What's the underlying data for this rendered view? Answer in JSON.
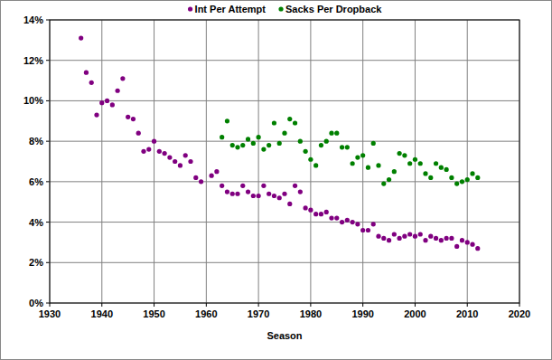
{
  "chart_data": {
    "type": "scatter",
    "x_label": "Season",
    "xlim": [
      1930,
      2020
    ],
    "xticks": [
      1930,
      1940,
      1950,
      1960,
      1970,
      1980,
      1990,
      2000,
      2010,
      2020
    ],
    "ylim": [
      0,
      14
    ],
    "yticks": [
      {
        "value": 0,
        "label": "0%"
      },
      {
        "value": 2,
        "label": "2%"
      },
      {
        "value": 4,
        "label": "4%"
      },
      {
        "value": 6,
        "label": "6%"
      },
      {
        "value": 8,
        "label": "8%"
      },
      {
        "value": 10,
        "label": "10%"
      },
      {
        "value": 12,
        "label": "12%"
      },
      {
        "value": 14,
        "label": "14%"
      }
    ],
    "grid": true,
    "legend": "top",
    "series": [
      {
        "name": "Int Per Attempt",
        "color": "#800080",
        "marker": "circle",
        "x": [
          1936,
          1937,
          1938,
          1939,
          1940,
          1941,
          1942,
          1943,
          1944,
          1945,
          1946,
          1947,
          1948,
          1949,
          1950,
          1951,
          1952,
          1953,
          1954,
          1955,
          1956,
          1957,
          1958,
          1959,
          1961,
          1962,
          1963,
          1964,
          1965,
          1966,
          1967,
          1968,
          1969,
          1970,
          1971,
          1972,
          1973,
          1974,
          1975,
          1976,
          1977,
          1978,
          1979,
          1980,
          1981,
          1982,
          1983,
          1984,
          1985,
          1986,
          1987,
          1988,
          1989,
          1990,
          1991,
          1992,
          1993,
          1994,
          1995,
          1996,
          1997,
          1998,
          1999,
          2000,
          2001,
          2002,
          2003,
          2004,
          2005,
          2006,
          2007,
          2008,
          2009,
          2010,
          2011,
          2012
        ],
        "values": [
          13.1,
          11.4,
          10.9,
          9.3,
          9.9,
          10.0,
          9.8,
          10.5,
          11.1,
          9.2,
          9.1,
          8.4,
          7.5,
          7.6,
          8.0,
          7.5,
          7.4,
          7.2,
          7.0,
          6.8,
          7.3,
          7.0,
          6.2,
          6.0,
          6.3,
          6.5,
          5.8,
          5.5,
          5.4,
          5.4,
          5.8,
          5.5,
          5.3,
          5.3,
          5.8,
          5.4,
          5.3,
          5.2,
          5.4,
          4.9,
          5.8,
          5.5,
          4.7,
          4.6,
          4.4,
          4.4,
          4.5,
          4.2,
          4.2,
          4.0,
          4.1,
          4.0,
          3.9,
          3.6,
          3.6,
          3.9,
          3.3,
          3.2,
          3.1,
          3.4,
          3.2,
          3.3,
          3.4,
          3.3,
          3.4,
          3.1,
          3.3,
          3.2,
          3.1,
          3.2,
          3.2,
          2.8,
          3.1,
          3.0,
          2.9,
          2.7
        ]
      },
      {
        "name": "Sacks Per Dropback",
        "color": "#008000",
        "marker": "circle",
        "x": [
          1963,
          1964,
          1965,
          1966,
          1967,
          1968,
          1969,
          1970,
          1971,
          1972,
          1973,
          1974,
          1975,
          1976,
          1977,
          1978,
          1979,
          1980,
          1981,
          1982,
          1983,
          1984,
          1985,
          1986,
          1987,
          1988,
          1989,
          1990,
          1991,
          1992,
          1993,
          1994,
          1995,
          1996,
          1997,
          1998,
          1999,
          2000,
          2001,
          2002,
          2003,
          2004,
          2005,
          2006,
          2007,
          2008,
          2009,
          2010,
          2011,
          2012
        ],
        "values": [
          8.2,
          9.0,
          7.8,
          7.7,
          7.8,
          8.1,
          7.9,
          8.2,
          7.6,
          7.8,
          8.9,
          7.9,
          8.4,
          9.1,
          8.9,
          8.0,
          7.5,
          7.1,
          6.8,
          7.8,
          8.0,
          8.4,
          8.4,
          7.7,
          7.7,
          6.9,
          7.2,
          7.3,
          6.7,
          7.9,
          6.8,
          5.9,
          6.1,
          6.5,
          7.4,
          7.3,
          6.9,
          7.1,
          6.9,
          6.4,
          6.2,
          6.9,
          6.7,
          6.6,
          6.2,
          5.9,
          6.0,
          6.1,
          6.4,
          6.2
        ]
      }
    ]
  }
}
